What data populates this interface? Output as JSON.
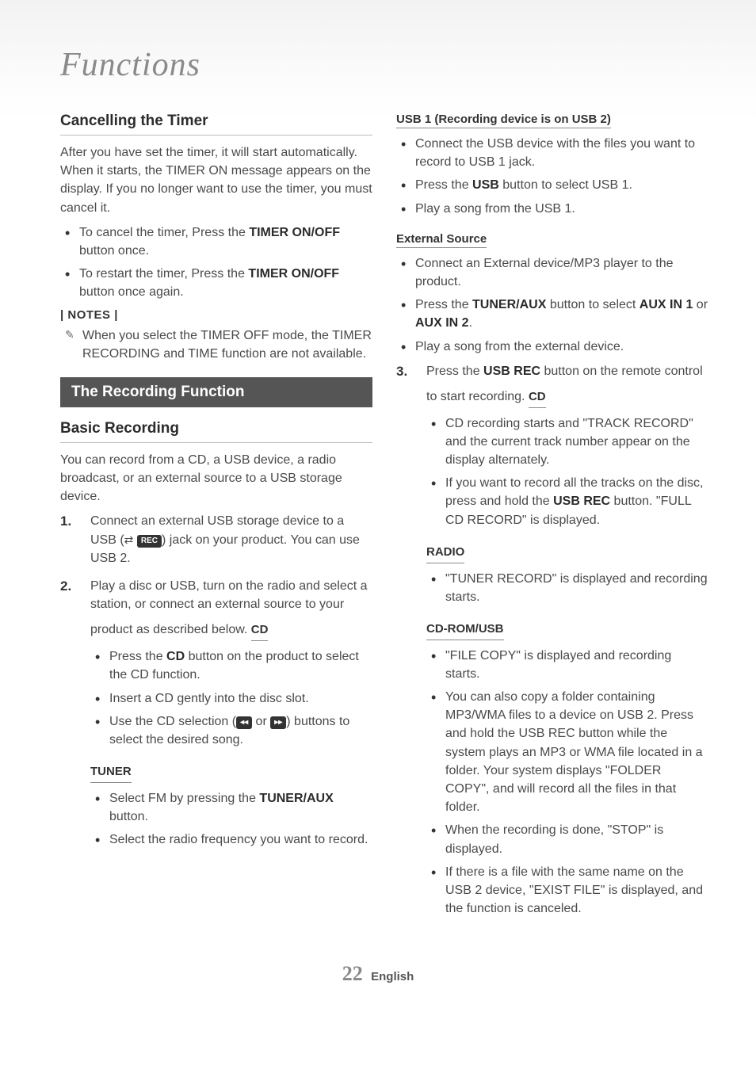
{
  "header": {
    "title": "Functions"
  },
  "left": {
    "cancel": {
      "title": "Cancelling the Timer",
      "intro": "After you have set the timer, it will start automatically. When it starts, the TIMER ON message appears on the display. If you no longer want to use the timer, you must cancel it.",
      "b1_pre": "To cancel the timer, Press the ",
      "b1_bold": "TIMER ON/OFF",
      "b1_post": " button once.",
      "b2_pre": "To restart the timer, Press the ",
      "b2_bold": "TIMER ON/OFF",
      "b2_post": " button once again.",
      "notes_label": "| NOTES |",
      "note1": "When you select the TIMER OFF mode, the TIMER RECORDING and TIME function are not available."
    },
    "recording_bar": "The Recording Function",
    "basic": {
      "title": "Basic Recording",
      "intro": "You can record from a CD, a USB device, a radio broadcast, or an external source to a USB storage device.",
      "step1_pre": "Connect an external USB storage device to a USB (",
      "step1_icon_rec": "REC",
      "step1_post": ") jack on your product. You can use USB 2.",
      "step2": "Play a disc or USB, turn on the radio and select a station, or connect an external source to your product as described below.",
      "cd_label": "CD",
      "cd_b1_pre": "Press the ",
      "cd_b1_bold": "CD",
      "cd_b1_post": " button on the product to select the CD function.",
      "cd_b2": "Insert a CD gently into the disc slot.",
      "cd_b3_pre": "Use the CD selection (",
      "cd_b3_mid": " or ",
      "cd_b3_post": ") buttons to select the desired song.",
      "tuner_label": "TUNER",
      "tuner_b1_pre": "Select FM by pressing the ",
      "tuner_b1_bold": "TUNER/AUX",
      "tuner_b1_post": " button.",
      "tuner_b2": "Select the radio frequency you want to record."
    }
  },
  "right": {
    "usb1": {
      "label": "USB 1 (Recording device is on USB 2)",
      "b1": "Connect the USB device with the files you want to record to USB 1 jack.",
      "b2_pre": "Press the ",
      "b2_bold": "USB",
      "b2_post": " button to select USB 1.",
      "b3": "Play a song from the USB 1."
    },
    "ext": {
      "label": "External Source",
      "b1": "Connect an External device/MP3 player to the product.",
      "b2_pre": "Press the ",
      "b2_bold": "TUNER/AUX",
      "b2_mid": " button to select ",
      "b2_bold2": "AUX IN 1",
      "b2_or": " or ",
      "b2_bold3": "AUX IN 2",
      "b2_post": ".",
      "b3": "Play a song from the external device."
    },
    "step3_pre": "Press the ",
    "step3_bold": "USB REC",
    "step3_post": " button on the remote control to start recording.",
    "cd": {
      "label": "CD",
      "b1": "CD recording starts and \"TRACK RECORD\" and the current track number appear on the display alternately.",
      "b2_pre": "If you want to record all the tracks on the disc, press and hold the ",
      "b2_bold": "USB REC",
      "b2_post": " button. \"FULL CD RECORD\" is displayed."
    },
    "radio": {
      "label": "RADIO",
      "b1": "\"TUNER RECORD\" is displayed and recording starts."
    },
    "cdrom": {
      "label": "CD-ROM/USB",
      "b1": "\"FILE COPY\" is displayed and recording starts.",
      "b2": "You can also copy a folder containing MP3/WMA files to a device on USB 2. Press and hold the USB REC button while the system plays an MP3 or WMA file located in a folder. Your system displays \"FOLDER COPY\", and will record all the files in that folder.",
      "b3": "When the recording is done, \"STOP\" is displayed.",
      "b4": "If there is a file with the same name on the USB 2 device, \"EXIST FILE\" is displayed, and the function is canceled."
    }
  },
  "footer": {
    "page": "22",
    "lang": "English"
  }
}
